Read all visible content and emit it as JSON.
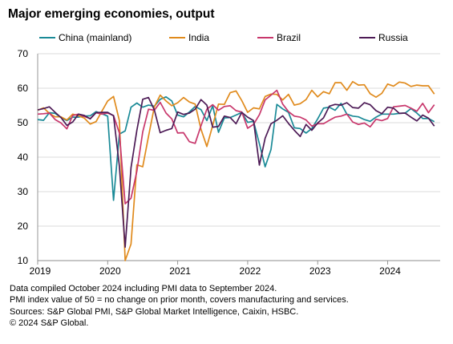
{
  "title": "Major emerging economies, output",
  "notes": [
    "Data compiled October 2024 including PMI data to September 2024.",
    "PMI index value of 50 = no change on prior month, covers manufacturing and services.",
    "Sources: S&P Global PMI, S&P Global Market Intelligence, Caixin, HSBC.",
    "© 2024 S&P Global."
  ],
  "chart_data": {
    "type": "line",
    "title": "Major emerging economies, output",
    "ylim": [
      10,
      70
    ],
    "yticks": [
      10,
      20,
      30,
      40,
      50,
      60,
      70
    ],
    "xlim": [
      2019.0,
      2024.75
    ],
    "xticks": [
      {
        "label": "2019",
        "value": 2019
      },
      {
        "label": "2020",
        "value": 2020
      },
      {
        "label": "2021",
        "value": 2021
      },
      {
        "label": "2022",
        "value": 2022
      },
      {
        "label": "2023",
        "value": 2023
      },
      {
        "label": "2024",
        "value": 2024
      }
    ],
    "start": "2019-01",
    "end": "2024-09",
    "grid": "horizontal",
    "legend_position": "top",
    "series": [
      {
        "name": "China (mainland)",
        "color": "#1a8a97",
        "values": [
          50.9,
          50.7,
          52.9,
          52.7,
          51.5,
          50.6,
          51.6,
          51.6,
          51.9,
          52.0,
          53.2,
          52.6,
          51.9,
          27.5,
          46.7,
          47.6,
          54.5,
          55.7,
          54.5,
          55.1,
          54.8,
          56.8,
          57.5,
          56.3,
          52.2,
          51.7,
          53.1,
          54.7,
          53.8,
          50.6,
          54.9,
          47.2,
          51.4,
          51.5,
          52.2,
          53.0,
          50.1,
          50.4,
          43.9,
          37.2,
          42.2,
          55.3,
          54.0,
          53.0,
          48.5,
          48.3,
          47.0,
          48.3,
          51.1,
          54.2,
          54.5,
          53.6,
          55.6,
          52.5,
          51.9,
          51.7,
          50.9,
          50.4,
          51.6,
          52.5,
          52.5,
          52.5,
          52.7,
          52.8,
          54.1,
          52.8,
          51.2,
          51.2,
          50.3
        ]
      },
      {
        "name": "India",
        "color": "#e08a1c",
        "values": [
          53.6,
          54.3,
          52.7,
          51.7,
          51.7,
          50.8,
          52.5,
          52.0,
          51.3,
          49.6,
          50.3,
          53.3,
          56.3,
          57.6,
          50.6,
          7.2,
          14.8,
          37.8,
          37.2,
          46.0,
          54.6,
          58.0,
          56.3,
          54.9,
          55.8,
          57.3,
          56.0,
          55.4,
          48.1,
          43.1,
          49.2,
          55.4,
          55.3,
          58.7,
          59.2,
          56.4,
          53.0,
          54.3,
          54.0,
          57.6,
          58.3,
          58.2,
          56.6,
          58.2,
          55.1,
          55.5,
          56.7,
          59.4,
          57.5,
          59.0,
          58.4,
          61.6,
          61.6,
          59.4,
          61.9,
          60.9,
          61.0,
          58.4,
          57.4,
          58.5,
          61.2,
          60.6,
          61.8,
          61.5,
          60.5,
          60.9,
          60.7,
          60.7,
          58.3
        ]
      },
      {
        "name": "Brazil",
        "color": "#c8376c",
        "values": [
          52.5,
          52.6,
          52.8,
          50.9,
          49.9,
          48.2,
          52.1,
          52.5,
          51.8,
          51.2,
          52.9,
          52.5,
          52.8,
          52.1,
          47.0,
          26.5,
          28.1,
          35.9,
          47.3,
          53.9,
          53.6,
          55.9,
          52.8,
          51.1,
          47.0,
          47.1,
          44.5,
          44.0,
          49.1,
          53.9,
          55.2,
          53.6,
          54.7,
          54.9,
          53.5,
          53.1,
          48.4,
          49.5,
          52.3,
          56.6,
          58.0,
          59.4,
          55.4,
          53.2,
          51.9,
          51.6,
          50.8,
          49.0,
          49.7,
          49.7,
          50.7,
          51.6,
          51.9,
          52.5,
          50.2,
          49.5,
          49.9,
          48.8,
          51.0,
          50.6,
          51.2,
          54.6,
          54.8,
          55.0,
          54.2,
          53.3,
          55.6,
          52.9,
          55.2
        ]
      },
      {
        "name": "Russia",
        "color": "#4d1b56",
        "values": [
          53.7,
          54.1,
          54.6,
          53.0,
          51.5,
          49.2,
          50.2,
          52.5,
          52.1,
          51.1,
          52.9,
          53.0,
          53.0,
          52.0,
          37.4,
          13.9,
          36.9,
          47.8,
          56.8,
          57.3,
          53.7,
          47.1,
          47.8,
          48.3,
          53.1,
          52.4,
          52.8,
          53.9,
          56.7,
          55.1,
          48.7,
          48.9,
          51.9,
          51.5,
          49.7,
          53.0,
          51.6,
          50.6,
          37.7,
          45.5,
          49.7,
          50.7,
          52.0,
          49.8,
          47.8,
          46.0,
          49.5,
          47.8,
          49.9,
          51.4,
          54.8,
          55.3,
          55.1,
          55.8,
          54.4,
          54.2,
          55.8,
          55.2,
          53.5,
          52.6,
          54.5,
          54.2,
          52.7,
          52.8,
          51.6,
          50.5,
          52.2,
          51.3,
          49.0
        ]
      }
    ]
  }
}
